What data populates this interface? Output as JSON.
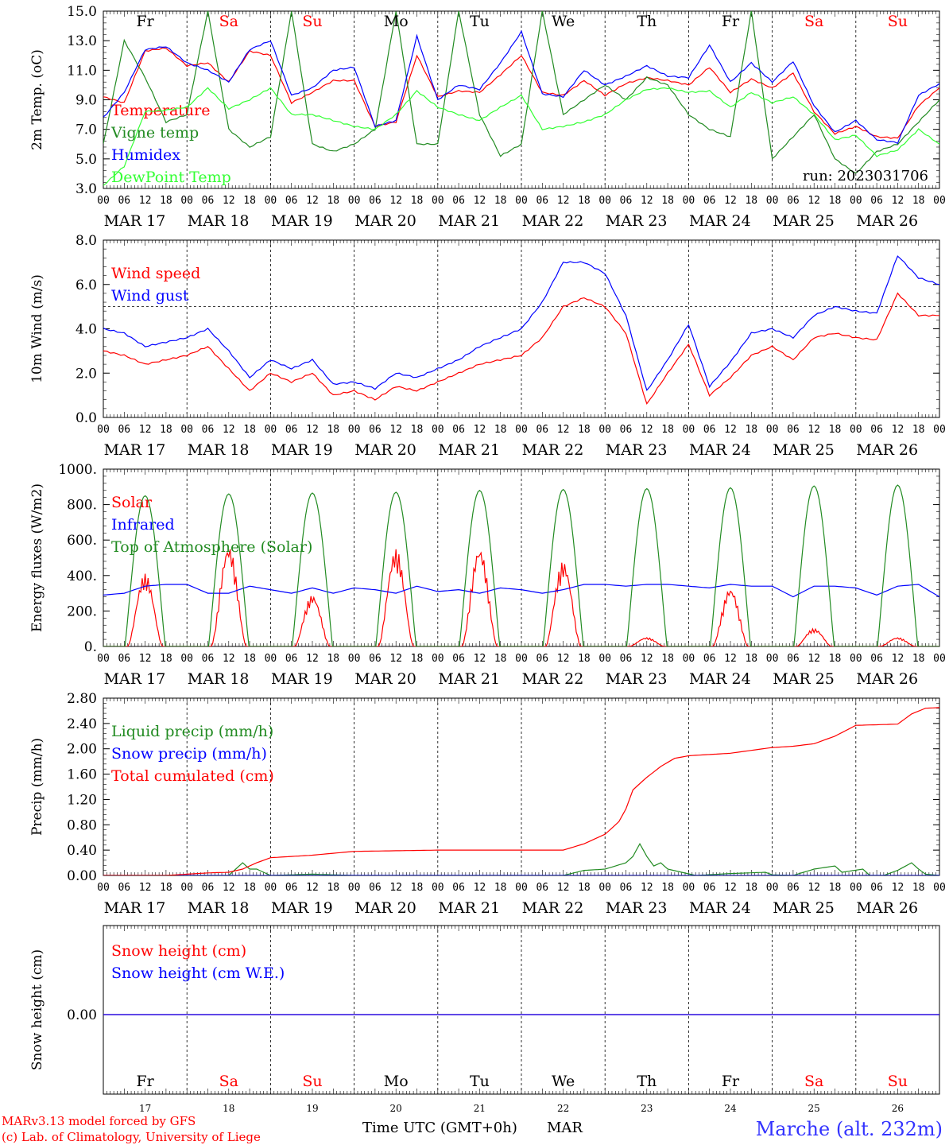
{
  "days": [
    "MAR 17",
    "MAR 18",
    "MAR 19",
    "MAR 20",
    "MAR 21",
    "MAR 22",
    "MAR 23",
    "MAR 24",
    "MAR 25",
    "MAR 26"
  ],
  "hour_labels": [
    "00",
    "06",
    "12",
    "18"
  ],
  "hour_end": "00",
  "weekdays": [
    "Fr",
    "Sa",
    "Su",
    "Mo",
    "Tu",
    "We",
    "Th",
    "Fr",
    "Sa",
    "Su"
  ],
  "weekday_colors": [
    "#000000",
    "#ff0000",
    "#ff0000",
    "#000000",
    "#000000",
    "#000000",
    "#000000",
    "#000000",
    "#ff0000",
    "#ff0000"
  ],
  "day_numbers": [
    "17",
    "18",
    "19",
    "20",
    "21",
    "22",
    "23",
    "24",
    "25",
    "26"
  ],
  "run_label": "run: 2023031706",
  "footer": {
    "model": "MARv3.13 model forced by GFS",
    "credit": "(c) Lab. of Climatology, University of Liege",
    "time_axis": "Time UTC (GMT+0h)",
    "month": "MAR",
    "location": "Marche (alt. 232m)"
  },
  "chart_data": [
    {
      "type": "line",
      "ylabel": "2m Temp. (oC)",
      "ylim": [
        3.0,
        15.0
      ],
      "yticks": [
        "15.0",
        "13.0",
        "11.0",
        "9.0",
        "7.0",
        "5.0",
        "3.0"
      ],
      "x_unit": "hours since Mar 17 00 UTC",
      "series": [
        {
          "name": "Temperature",
          "color": "#ff0000",
          "x": [
            0,
            6,
            12,
            18,
            24,
            30,
            36,
            42,
            48,
            54,
            60,
            66,
            72,
            78,
            84,
            90,
            96,
            102,
            108,
            114,
            120,
            126,
            132,
            138,
            144,
            150,
            156,
            162,
            168,
            174,
            180,
            186,
            192,
            198,
            204,
            210,
            216,
            222,
            228,
            234,
            240
          ],
          "y": [
            9.2,
            8.8,
            12.3,
            12.5,
            11.3,
            11.5,
            10.2,
            12.3,
            12.0,
            8.8,
            9.5,
            10.3,
            10.3,
            7.2,
            7.5,
            12.0,
            9.2,
            9.6,
            9.5,
            10.7,
            12.0,
            9.5,
            9.3,
            10.3,
            9.3,
            10.1,
            10.5,
            10.3,
            10.0,
            11.2,
            9.5,
            10.4,
            9.8,
            10.8,
            8.2,
            6.7,
            7.2,
            6.5,
            6.4,
            8.6,
            9.8
          ]
        },
        {
          "name": "Vigne temp",
          "color": "#228b22",
          "x": [
            0,
            6,
            12,
            18,
            24,
            30,
            36,
            42,
            48,
            54,
            60,
            66,
            72,
            78,
            84,
            90,
            96,
            102,
            108,
            114,
            120,
            126,
            132,
            138,
            144,
            150,
            156,
            162,
            168,
            174,
            180,
            186,
            192,
            198,
            204,
            210,
            216,
            222,
            228,
            234,
            240
          ],
          "y": [
            6.0,
            13.0,
            10.5,
            7.5,
            8.0,
            15.0,
            7.0,
            5.8,
            6.5,
            15.0,
            6.0,
            5.5,
            6.0,
            7.0,
            15.0,
            6.0,
            6.0,
            15.0,
            8.0,
            5.2,
            6.0,
            15.0,
            8.0,
            9.0,
            10.0,
            9.0,
            10.5,
            10.0,
            8.0,
            7.0,
            6.5,
            15.0,
            5.0,
            6.5,
            8.0,
            5.0,
            4.0,
            5.5,
            6.0,
            7.5,
            9.0
          ]
        },
        {
          "name": "Humidex",
          "color": "#0000ff",
          "x": [
            0,
            6,
            12,
            18,
            24,
            30,
            36,
            42,
            48,
            54,
            60,
            66,
            72,
            78,
            84,
            90,
            96,
            102,
            108,
            114,
            120,
            126,
            132,
            138,
            144,
            150,
            156,
            162,
            168,
            174,
            180,
            186,
            192,
            198,
            204,
            210,
            216,
            222,
            228,
            234,
            240
          ],
          "y": [
            7.8,
            9.5,
            12.4,
            12.6,
            11.5,
            11.0,
            10.2,
            12.4,
            13.0,
            9.3,
            9.8,
            11.0,
            11.2,
            7.2,
            7.6,
            13.3,
            9.0,
            10.0,
            9.7,
            11.5,
            13.6,
            9.4,
            9.2,
            11.0,
            10.0,
            10.6,
            11.3,
            10.6,
            10.5,
            12.7,
            10.2,
            11.5,
            10.2,
            11.6,
            8.6,
            6.8,
            7.6,
            6.3,
            6.1,
            9.3,
            10.1
          ]
        },
        {
          "name": "DewPoint Temp",
          "color": "#33ff33",
          "x": [
            0,
            6,
            12,
            18,
            24,
            30,
            36,
            42,
            48,
            54,
            60,
            66,
            72,
            78,
            84,
            90,
            96,
            102,
            108,
            114,
            120,
            126,
            132,
            138,
            144,
            150,
            156,
            162,
            168,
            174,
            180,
            186,
            192,
            198,
            204,
            210,
            216,
            222,
            228,
            234,
            240
          ],
          "y": [
            3.2,
            4.5,
            8.2,
            8.3,
            8.5,
            9.8,
            8.4,
            9.0,
            9.8,
            8.0,
            8.0,
            7.6,
            7.2,
            7.0,
            8.0,
            9.6,
            8.5,
            8.0,
            7.6,
            8.5,
            9.3,
            7.0,
            7.2,
            7.5,
            8.0,
            9.0,
            9.7,
            9.8,
            9.5,
            9.6,
            8.5,
            9.5,
            8.8,
            9.2,
            8.0,
            6.3,
            6.6,
            5.2,
            5.6,
            7.0,
            6.0
          ]
        }
      ]
    },
    {
      "type": "line",
      "ylabel": "10m Wind (m/s)",
      "ylim": [
        0.0,
        8.0
      ],
      "yticks": [
        "8.0",
        "6.0",
        "4.0",
        "2.0",
        "0.0"
      ],
      "reference_line": 5.0,
      "x_unit": "hours since Mar 17 00 UTC",
      "series": [
        {
          "name": "Wind speed",
          "color": "#ff0000",
          "x": [
            0,
            6,
            12,
            18,
            24,
            30,
            36,
            42,
            48,
            54,
            60,
            66,
            72,
            78,
            84,
            90,
            96,
            102,
            108,
            114,
            120,
            126,
            132,
            138,
            144,
            150,
            156,
            162,
            168,
            174,
            180,
            186,
            192,
            198,
            204,
            210,
            216,
            222,
            228,
            234,
            240
          ],
          "y": [
            3.0,
            2.8,
            2.4,
            2.6,
            2.8,
            3.2,
            2.2,
            1.2,
            2.0,
            1.6,
            2.0,
            1.0,
            1.2,
            0.8,
            1.4,
            1.2,
            1.6,
            2.0,
            2.4,
            2.6,
            2.8,
            3.6,
            5.0,
            5.4,
            5.0,
            3.8,
            0.6,
            2.0,
            3.3,
            1.0,
            1.8,
            2.8,
            3.2,
            2.6,
            3.6,
            3.8,
            3.6,
            3.5,
            5.6,
            4.6,
            4.6
          ]
        },
        {
          "name": "Wind gust",
          "color": "#0000ff",
          "x": [
            0,
            6,
            12,
            18,
            24,
            30,
            36,
            42,
            48,
            54,
            60,
            66,
            72,
            78,
            84,
            90,
            96,
            102,
            108,
            114,
            120,
            126,
            132,
            138,
            144,
            150,
            156,
            162,
            168,
            174,
            180,
            186,
            192,
            198,
            204,
            210,
            216,
            222,
            228,
            234,
            240
          ],
          "y": [
            4.0,
            3.8,
            3.2,
            3.4,
            3.6,
            4.0,
            3.0,
            1.8,
            2.6,
            2.2,
            2.6,
            1.5,
            1.6,
            1.3,
            2.0,
            1.8,
            2.2,
            2.6,
            3.2,
            3.6,
            4.0,
            5.2,
            7.0,
            7.0,
            6.5,
            4.6,
            1.2,
            2.6,
            4.2,
            1.4,
            2.5,
            3.8,
            4.0,
            3.6,
            4.6,
            5.0,
            4.8,
            4.7,
            7.3,
            6.3,
            6.0
          ]
        }
      ]
    },
    {
      "type": "line",
      "ylabel": "Energy fluxes (W/m2)",
      "ylim": [
        0,
        1000
      ],
      "yticks": [
        "1000.",
        "800.",
        "600.",
        "400.",
        "200.",
        "0."
      ],
      "x_unit": "hours since Mar 17 00 UTC",
      "series": [
        {
          "name": "Solar",
          "color": "#ff0000",
          "daily_peak": [
            410,
            570,
            290,
            550,
            560,
            480,
            50,
            330,
            100,
            50
          ]
        },
        {
          "name": "Infrared",
          "color": "#0000ff",
          "x": [
            0,
            6,
            12,
            18,
            24,
            30,
            36,
            42,
            48,
            54,
            60,
            66,
            72,
            78,
            84,
            90,
            96,
            102,
            108,
            114,
            120,
            126,
            132,
            138,
            144,
            150,
            156,
            162,
            168,
            174,
            180,
            186,
            192,
            198,
            204,
            210,
            216,
            222,
            228,
            234,
            240
          ],
          "y": [
            290,
            300,
            340,
            350,
            350,
            300,
            300,
            340,
            320,
            300,
            330,
            300,
            330,
            320,
            300,
            340,
            310,
            320,
            300,
            330,
            320,
            300,
            320,
            350,
            350,
            340,
            350,
            350,
            340,
            330,
            350,
            340,
            340,
            280,
            340,
            340,
            330,
            290,
            340,
            350,
            280
          ]
        },
        {
          "name": "Top of Atmosphere (Solar)",
          "color": "#228b22",
          "daily_peak": [
            850,
            860,
            865,
            870,
            880,
            885,
            890,
            895,
            905,
            910
          ]
        }
      ]
    },
    {
      "type": "line",
      "ylabel": "Precip (mm/h)",
      "ylim": [
        0.0,
        2.8
      ],
      "yticks": [
        "2.80",
        "2.40",
        "2.00",
        "1.60",
        "1.20",
        "0.80",
        "0.40",
        "0.00"
      ],
      "x_unit": "hours since Mar 17 00 UTC",
      "series": [
        {
          "name": "Liquid precip (mm/h)",
          "color": "#228b22",
          "x": [
            0,
            36,
            38,
            40,
            42,
            44,
            46,
            48,
            60,
            72,
            132,
            138,
            144,
            150,
            152,
            154,
            156,
            158,
            160,
            162,
            170,
            180,
            190,
            192,
            198,
            204,
            210,
            212,
            218,
            220,
            224,
            228,
            232,
            234,
            236,
            240
          ],
          "y": [
            0,
            0,
            0.1,
            0.2,
            0.1,
            0.1,
            0.05,
            0,
            0.02,
            0,
            0,
            0.08,
            0.1,
            0.2,
            0.3,
            0.5,
            0.3,
            0.15,
            0.2,
            0.1,
            0,
            0.03,
            0.05,
            0.01,
            0,
            0.1,
            0.15,
            0.05,
            0.1,
            0,
            0,
            0.08,
            0.2,
            0.1,
            0.02,
            0
          ]
        },
        {
          "name": "Snow precip (mm/h)",
          "color": "#0000ff",
          "x": [
            0,
            240
          ],
          "y": [
            0,
            0
          ]
        },
        {
          "name": "Total cumulated (cm)",
          "color": "#ff0000",
          "x": [
            0,
            18,
            24,
            30,
            36,
            40,
            44,
            48,
            60,
            72,
            84,
            96,
            108,
            120,
            132,
            138,
            144,
            148,
            150,
            152,
            156,
            160,
            164,
            168,
            180,
            192,
            198,
            204,
            210,
            216,
            228,
            232,
            236,
            240
          ],
          "y": [
            0,
            0,
            0.02,
            0.04,
            0.05,
            0.1,
            0.2,
            0.28,
            0.32,
            0.38,
            0.39,
            0.4,
            0.4,
            0.4,
            0.4,
            0.5,
            0.65,
            0.85,
            1.05,
            1.35,
            1.55,
            1.72,
            1.85,
            1.89,
            1.93,
            2.02,
            2.04,
            2.08,
            2.2,
            2.37,
            2.39,
            2.55,
            2.64,
            2.65
          ]
        }
      ]
    },
    {
      "type": "line",
      "ylabel": "Snow height (cm)",
      "yticks": [
        "0.00"
      ],
      "x_unit": "hours since Mar 17 00 UTC",
      "series": [
        {
          "name": "Snow height (cm)",
          "color": "#ff0000",
          "x": [
            0,
            240
          ],
          "y": [
            0,
            0
          ]
        },
        {
          "name": "Snow height (cm W.E.)",
          "color": "#0000ff",
          "x": [
            0,
            240
          ],
          "y": [
            0,
            0
          ]
        }
      ]
    }
  ]
}
